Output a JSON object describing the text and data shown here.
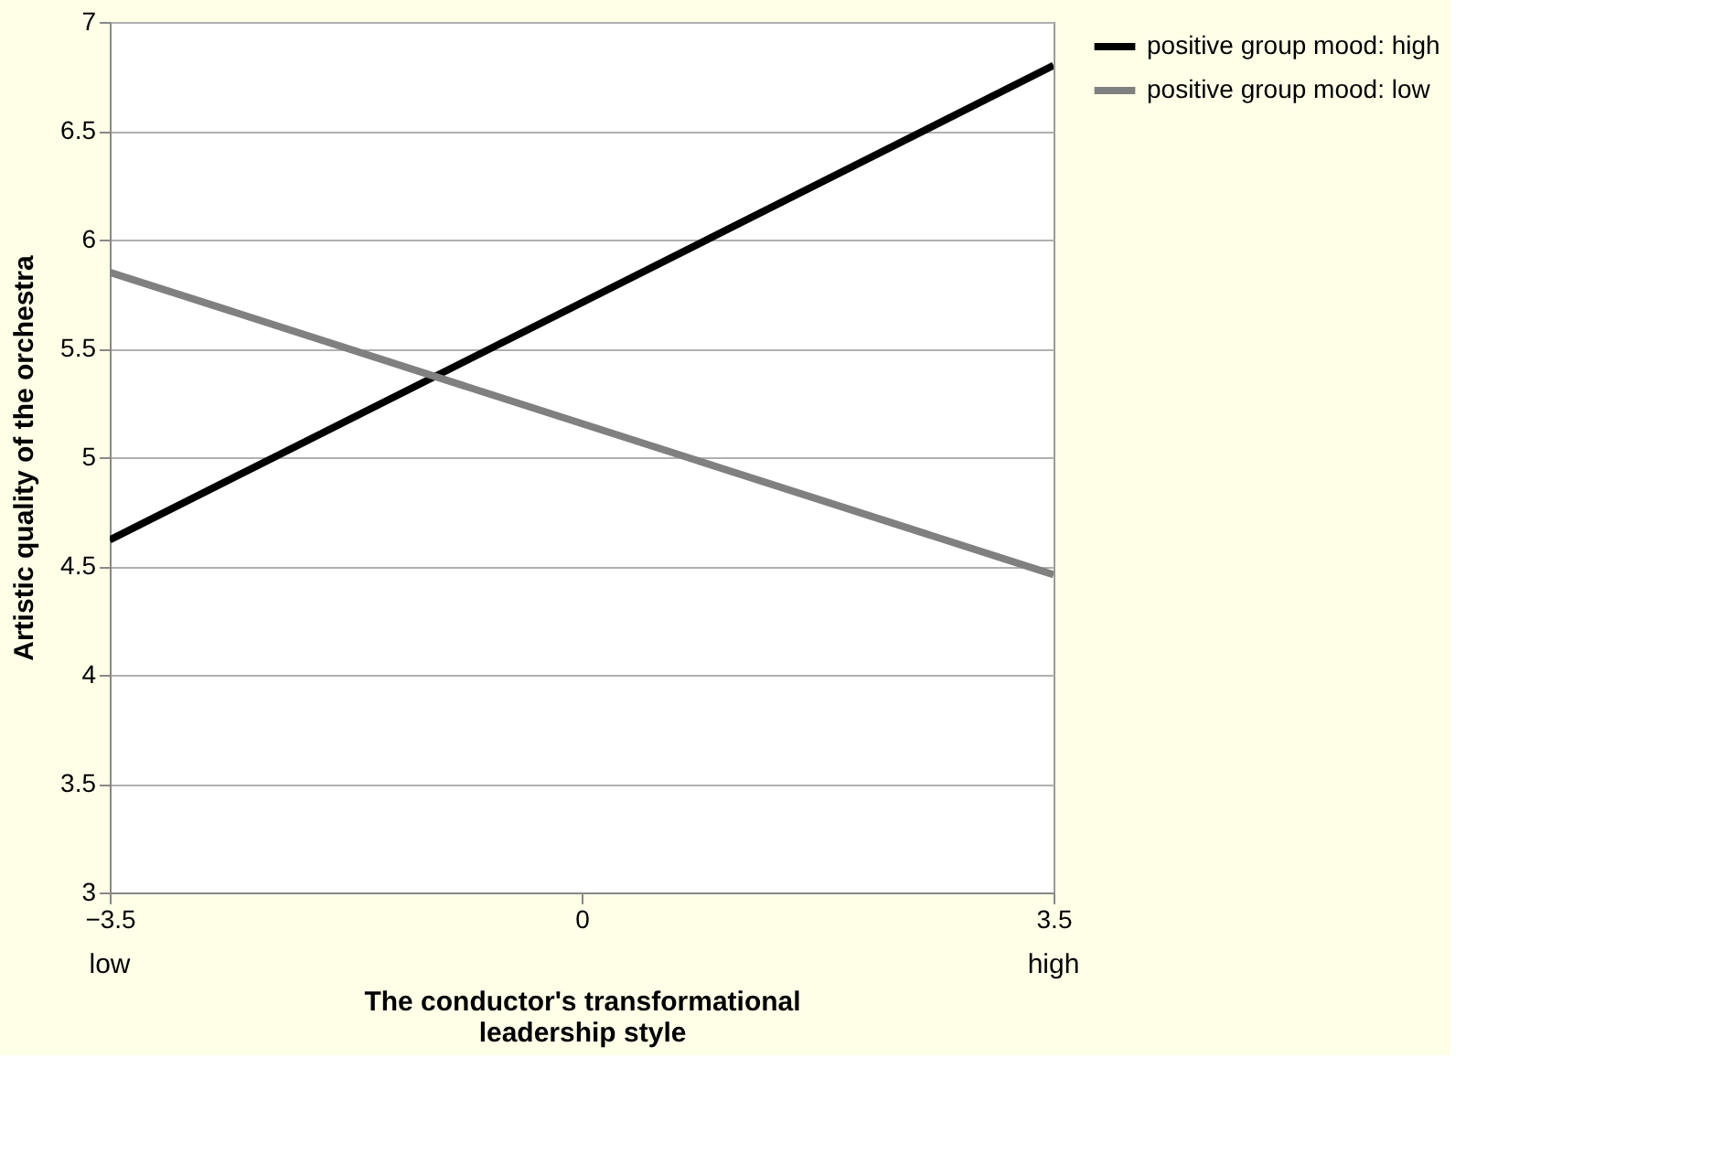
{
  "chart_data": {
    "type": "line",
    "xlabel": "The conductor's transformational leadership style",
    "ylabel": "Artistic quality of the orchestra",
    "x": [
      -3.5,
      3.5
    ],
    "series": [
      {
        "name": "positive group mood: high",
        "color": "#000000",
        "values": [
          4.62,
          6.8
        ]
      },
      {
        "name": "positive group mood: low",
        "color": "#808080",
        "values": [
          5.85,
          4.46
        ]
      }
    ],
    "xlim": [
      -3.5,
      3.5
    ],
    "xticks": [
      {
        "value": -3.5,
        "label": "−3.5"
      },
      0,
      3.5
    ],
    "ylim": [
      3,
      7
    ],
    "yticks": [
      3,
      3.5,
      4,
      4.5,
      5,
      5.5,
      6,
      6.5,
      7
    ],
    "annotations": [
      "low",
      "high"
    ],
    "grid": "y",
    "legend": "right",
    "marker": "none",
    "line_style": "solid"
  }
}
